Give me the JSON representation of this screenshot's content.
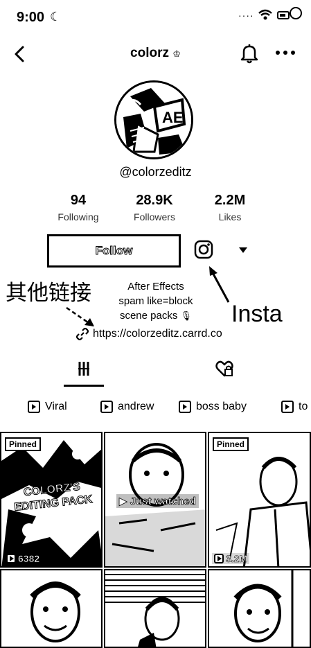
{
  "status_bar": {
    "time": "9:00"
  },
  "header": {
    "title": "colorz"
  },
  "profile": {
    "username": "@colorzeditz",
    "stats": [
      {
        "value": "94",
        "label": "Following"
      },
      {
        "value": "28.9K",
        "label": "Followers"
      },
      {
        "value": "2.2M",
        "label": "Likes"
      }
    ],
    "follow_label": "Follow",
    "bio_lines": [
      "After Effects",
      "spam like=block",
      "scene packs"
    ],
    "link": "https://colorzeditz.carrd.co"
  },
  "annotations": {
    "other_links": "其他链接",
    "insta": "Insta"
  },
  "playlists": [
    {
      "label": "Viral"
    },
    {
      "label": "andrew"
    },
    {
      "label": "boss baby"
    },
    {
      "label": "to"
    }
  ],
  "videos": [
    {
      "pinned_label": "Pinned",
      "title": "COLORZ'S EDITING PACK",
      "views": "6382"
    },
    {
      "overlay": "Just watched"
    },
    {
      "pinned_label": "Pinned",
      "views": "3.2M"
    }
  ],
  "icons": {
    "back": "chevron-left-icon",
    "bell": "bell-icon",
    "more": "more-icon",
    "instagram": "instagram-icon",
    "dropdown": "caret-down-icon",
    "grid": "grid-icon",
    "liked": "heart-lock-icon",
    "link": "link-icon",
    "playlist": "playlist-icon",
    "play": "play-icon"
  }
}
